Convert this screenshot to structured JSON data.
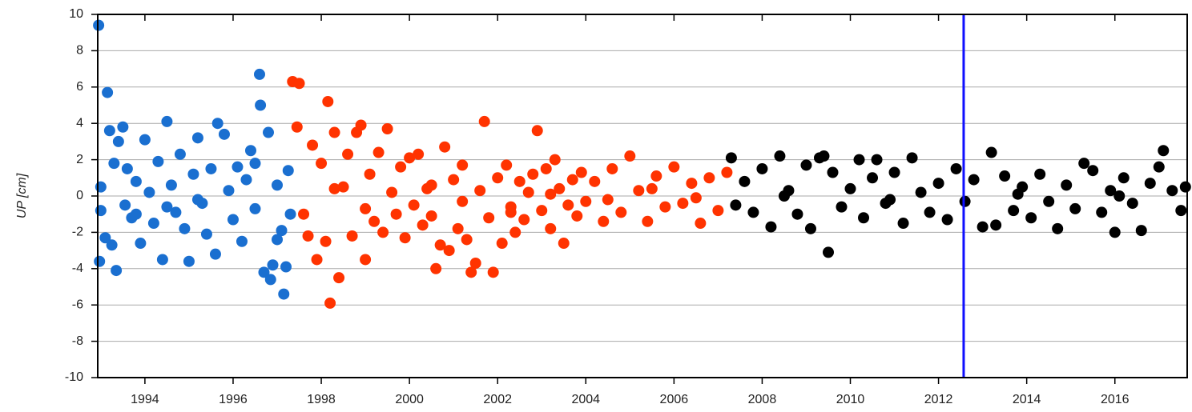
{
  "chart_data": {
    "type": "scatter",
    "ylabel": "UP [cm]",
    "xlim": [
      1992.93,
      2017.64
    ],
    "ylim": [
      -10,
      10
    ],
    "xticks": [
      1994,
      1996,
      1998,
      2000,
      2002,
      2004,
      2006,
      2008,
      2010,
      2012,
      2014,
      2016
    ],
    "yticks": [
      -10,
      -8,
      -6,
      -4,
      -2,
      0,
      2,
      4,
      6,
      8,
      10
    ],
    "grid": true,
    "vline": {
      "value": 2012.57,
      "color": "#1010ff"
    },
    "series": [
      {
        "color": "#1a6fd0",
        "x": [
          1992.95,
          1992.97,
          1993.0,
          1993.1,
          1993.15,
          1993.2,
          1993.25,
          1993.3,
          1993.35,
          1993.4,
          1993.5,
          1993.55,
          1993.6,
          1993.7,
          1993.8,
          1993.9,
          1994.0,
          1994.1,
          1994.2,
          1994.3,
          1994.4,
          1994.5,
          1994.6,
          1994.7,
          1994.8,
          1994.9,
          1995.0,
          1995.1,
          1995.2,
          1995.3,
          1995.4,
          1995.5,
          1995.6,
          1995.65,
          1995.8,
          1995.9,
          1996.0,
          1996.1,
          1996.2,
          1996.3,
          1996.4,
          1996.5,
          1996.6,
          1996.62,
          1996.7,
          1996.8,
          1996.85,
          1996.9,
          1997.0,
          1997.1,
          1997.15,
          1997.2,
          1997.25,
          1997.3,
          1997.0,
          1996.5,
          1995.2,
          1994.5,
          1993.8,
          1993.0
        ],
        "values": [
          9.4,
          -3.6,
          0.5,
          -2.3,
          5.7,
          3.6,
          -2.7,
          1.8,
          -4.1,
          3.0,
          3.8,
          -0.5,
          1.5,
          -1.2,
          0.8,
          -2.6,
          3.1,
          0.2,
          -1.5,
          1.9,
          -3.5,
          4.1,
          0.6,
          -0.9,
          2.3,
          -1.8,
          -3.6,
          1.2,
          3.2,
          -0.4,
          -2.1,
          1.5,
          -3.2,
          4.0,
          3.4,
          0.3,
          -1.3,
          1.6,
          -2.5,
          0.9,
          2.5,
          -0.7,
          6.7,
          5.0,
          -4.2,
          3.5,
          -4.6,
          -3.8,
          0.6,
          -1.9,
          -5.4,
          -3.9,
          1.4,
          -1.0,
          -2.4,
          1.8,
          -0.2,
          -0.6,
          -1.0,
          -0.8
        ]
      },
      {
        "color": "#ff3300",
        "x": [
          1997.35,
          1997.5,
          1997.45,
          1997.6,
          1997.7,
          1997.8,
          1997.9,
          1998.0,
          1998.1,
          1998.15,
          1998.2,
          1998.3,
          1998.4,
          1998.5,
          1998.6,
          1998.7,
          1998.8,
          1998.9,
          1999.0,
          1999.1,
          1999.2,
          1999.3,
          1999.4,
          1999.5,
          1999.6,
          1999.7,
          1999.8,
          1999.9,
          2000.0,
          2000.1,
          2000.2,
          2000.3,
          2000.4,
          2000.5,
          2000.6,
          2000.7,
          2000.8,
          2000.9,
          2001.0,
          2001.1,
          2001.2,
          2001.3,
          2001.4,
          2001.5,
          2001.6,
          2001.7,
          2001.8,
          2001.9,
          2002.0,
          2002.1,
          2002.2,
          2002.3,
          2002.4,
          2002.5,
          2002.6,
          2002.7,
          2002.8,
          2002.9,
          2003.0,
          2003.1,
          2003.2,
          2003.3,
          2003.4,
          2003.5,
          2003.6,
          2003.7,
          2003.8,
          2003.9,
          2004.0,
          2004.2,
          2004.4,
          2004.6,
          2004.8,
          2005.0,
          2005.2,
          2005.4,
          2005.6,
          2005.8,
          2006.0,
          2006.2,
          2006.4,
          2006.6,
          2006.8,
          2007.0,
          2007.2,
          1998.3,
          1999.0,
          2000.5,
          2001.2,
          2002.3,
          2003.2,
          2004.5,
          2005.5,
          2006.5
        ],
        "values": [
          6.3,
          6.2,
          3.8,
          -1.0,
          -2.2,
          2.8,
          -3.5,
          1.8,
          -2.5,
          5.2,
          -5.9,
          3.5,
          -4.5,
          0.5,
          2.3,
          -2.2,
          3.5,
          3.9,
          -3.5,
          1.2,
          -1.4,
          2.4,
          -2.0,
          3.7,
          0.2,
          -1.0,
          1.6,
          -2.3,
          2.1,
          -0.5,
          2.3,
          -1.6,
          0.4,
          -1.1,
          -4.0,
          -2.7,
          2.7,
          -3.0,
          0.9,
          -1.8,
          1.7,
          -2.4,
          -4.2,
          -3.7,
          0.3,
          4.1,
          -1.2,
          -4.2,
          1.0,
          -2.6,
          1.7,
          -0.6,
          -2.0,
          0.8,
          -1.3,
          0.2,
          1.2,
          3.6,
          -0.8,
          1.5,
          -1.8,
          2.0,
          0.4,
          -2.6,
          -0.5,
          0.9,
          -1.1,
          1.3,
          -0.3,
          0.8,
          -1.4,
          1.5,
          -0.9,
          2.2,
          0.3,
          -1.4,
          1.1,
          -0.6,
          1.6,
          -0.4,
          0.7,
          -1.5,
          1.0,
          -0.8,
          1.3,
          0.4,
          -0.7,
          0.6,
          -0.3,
          -0.9,
          0.1,
          -0.2,
          0.4,
          -0.1
        ]
      },
      {
        "color": "#000000",
        "x": [
          2007.3,
          2007.4,
          2007.6,
          2007.8,
          2008.0,
          2008.2,
          2008.4,
          2008.6,
          2008.8,
          2009.0,
          2009.1,
          2009.3,
          2009.4,
          2009.5,
          2009.6,
          2009.8,
          2010.0,
          2010.2,
          2010.3,
          2010.5,
          2010.6,
          2010.8,
          2011.0,
          2011.2,
          2011.4,
          2011.6,
          2011.8,
          2012.0,
          2012.2,
          2012.4,
          2012.6,
          2012.8,
          2013.0,
          2013.2,
          2013.3,
          2013.5,
          2013.7,
          2013.9,
          2014.1,
          2014.3,
          2014.5,
          2014.7,
          2014.9,
          2015.1,
          2015.3,
          2015.5,
          2015.7,
          2015.9,
          2016.0,
          2016.2,
          2016.4,
          2016.6,
          2016.8,
          2017.0,
          2017.1,
          2017.3,
          2017.5,
          2017.6,
          2008.5,
          2010.9,
          2013.8,
          2016.1
        ],
        "values": [
          2.1,
          -0.5,
          0.8,
          -0.9,
          1.5,
          -1.7,
          2.2,
          0.3,
          -1.0,
          1.7,
          -1.8,
          2.1,
          2.2,
          -3.1,
          1.3,
          -0.6,
          0.4,
          2.0,
          -1.2,
          1.0,
          2.0,
          -0.4,
          1.3,
          -1.5,
          2.1,
          0.2,
          -0.9,
          0.7,
          -1.3,
          1.5,
          -0.3,
          0.9,
          -1.7,
          2.4,
          -1.6,
          1.1,
          -0.8,
          0.5,
          -1.2,
          1.2,
          -0.3,
          -1.8,
          0.6,
          -0.7,
          1.8,
          1.4,
          -0.9,
          0.3,
          -2.0,
          1.0,
          -0.4,
          -1.9,
          0.7,
          1.6,
          2.5,
          0.3,
          -0.8,
          0.5,
          0.0,
          -0.2,
          0.1,
          0.0
        ]
      }
    ]
  }
}
